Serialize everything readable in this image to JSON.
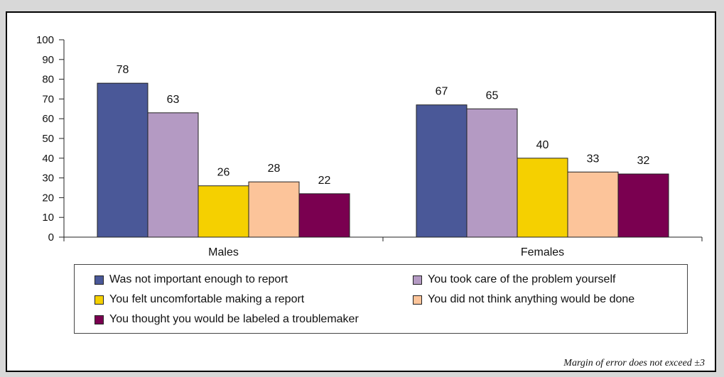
{
  "chart_data": {
    "type": "bar",
    "categories": [
      "Males",
      "Females"
    ],
    "series": [
      {
        "name": "Was not important enough to report",
        "color": "#4a5898",
        "values": [
          78,
          67
        ]
      },
      {
        "name": "You took care of the problem yourself",
        "color": "#b49ac3",
        "values": [
          63,
          65
        ]
      },
      {
        "name": "You felt uncomfortable making a report",
        "color": "#f5d000",
        "values": [
          26,
          40
        ]
      },
      {
        "name": "You did not think anything would be done",
        "color": "#fcc49a",
        "values": [
          28,
          33
        ]
      },
      {
        "name": "You thought you would be labeled a troublemaker",
        "color": "#7a0050",
        "values": [
          22,
          32
        ]
      }
    ],
    "ylim": [
      0,
      100
    ],
    "yticks": [
      0,
      10,
      20,
      30,
      40,
      50,
      60,
      70,
      80,
      90,
      100
    ],
    "legend_position": "bottom",
    "grid": false
  },
  "note": "Margin of error does not exceed ±3"
}
